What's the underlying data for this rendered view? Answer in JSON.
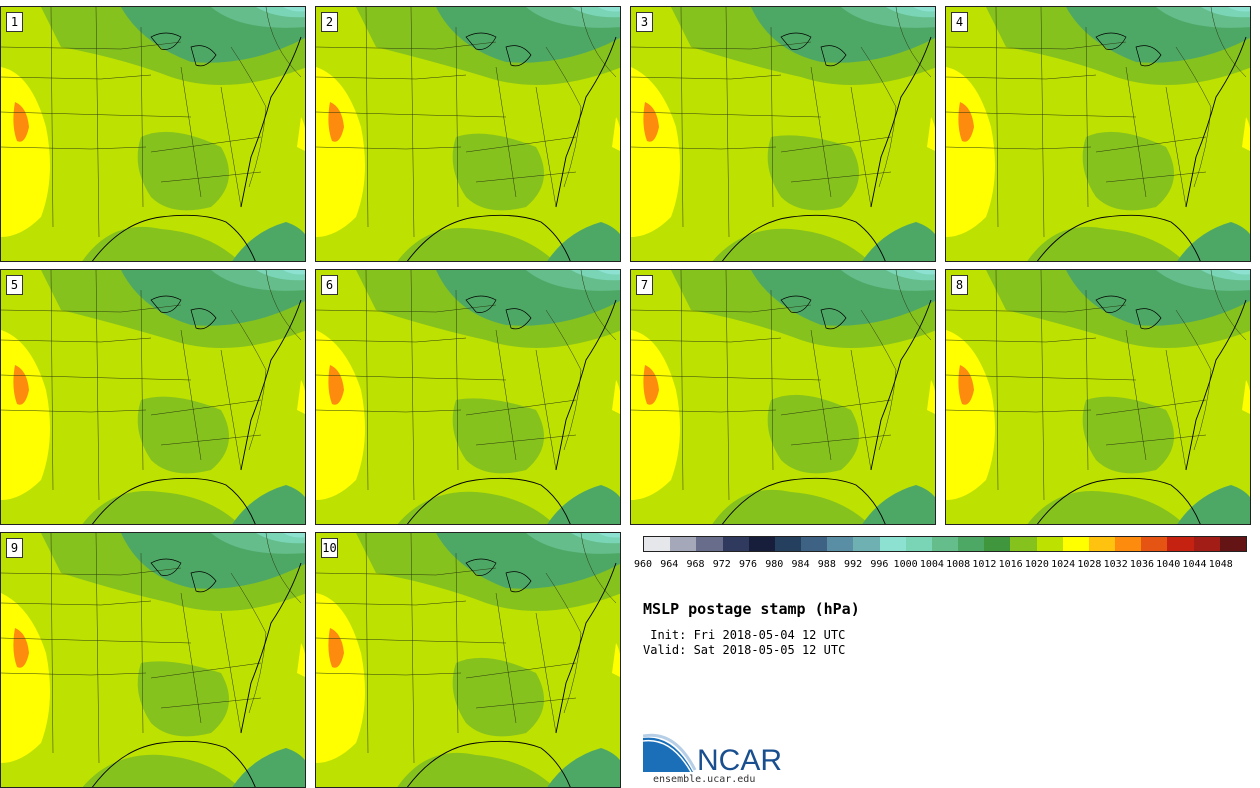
{
  "panels": [
    {
      "label": "1"
    },
    {
      "label": "2"
    },
    {
      "label": "3"
    },
    {
      "label": "4"
    },
    {
      "label": "5"
    },
    {
      "label": "6"
    },
    {
      "label": "7"
    },
    {
      "label": "8"
    },
    {
      "label": "9"
    },
    {
      "label": "10"
    }
  ],
  "colorbar": {
    "colors": [
      "#e6e7ea",
      "#a5a8b8",
      "#676d8a",
      "#2f3a5e",
      "#161e3c",
      "#25405f",
      "#3e6283",
      "#5a8ea4",
      "#6fb0b2",
      "#8ce1d0",
      "#7ad4b6",
      "#64bd8a",
      "#4ea865",
      "#3f963d",
      "#86c21d",
      "#bde100",
      "#ffff00",
      "#ffc20f",
      "#fd8b0e",
      "#e65413",
      "#c62212",
      "#a21d16",
      "#651416"
    ],
    "tick_labels": [
      "960",
      "964",
      "968",
      "972",
      "976",
      "980",
      "984",
      "988",
      "992",
      "996",
      "1000",
      "1004",
      "1008",
      "1012",
      "1016",
      "1020",
      "1024",
      "1028",
      "1032",
      "1036",
      "1040",
      "1044",
      "1048"
    ]
  },
  "map_fills": {
    "ocean_south": "#86c21d",
    "land": "#bde100",
    "high": "#ffff00",
    "peak": "#fd8b0e",
    "low1": "#4ea865",
    "low2": "#64bd8a",
    "low3": "#7ad4b6",
    "low4": "#8ce1d0"
  },
  "title": "MSLP postage stamp (hPa)",
  "init": " Init: Fri 2018-05-04 12 UTC",
  "valid": "Valid: Sat 2018-05-05 12 UTC",
  "logo": {
    "text": "NCAR",
    "url": "ensemble.ucar.edu",
    "color": "#1a4f8f"
  }
}
